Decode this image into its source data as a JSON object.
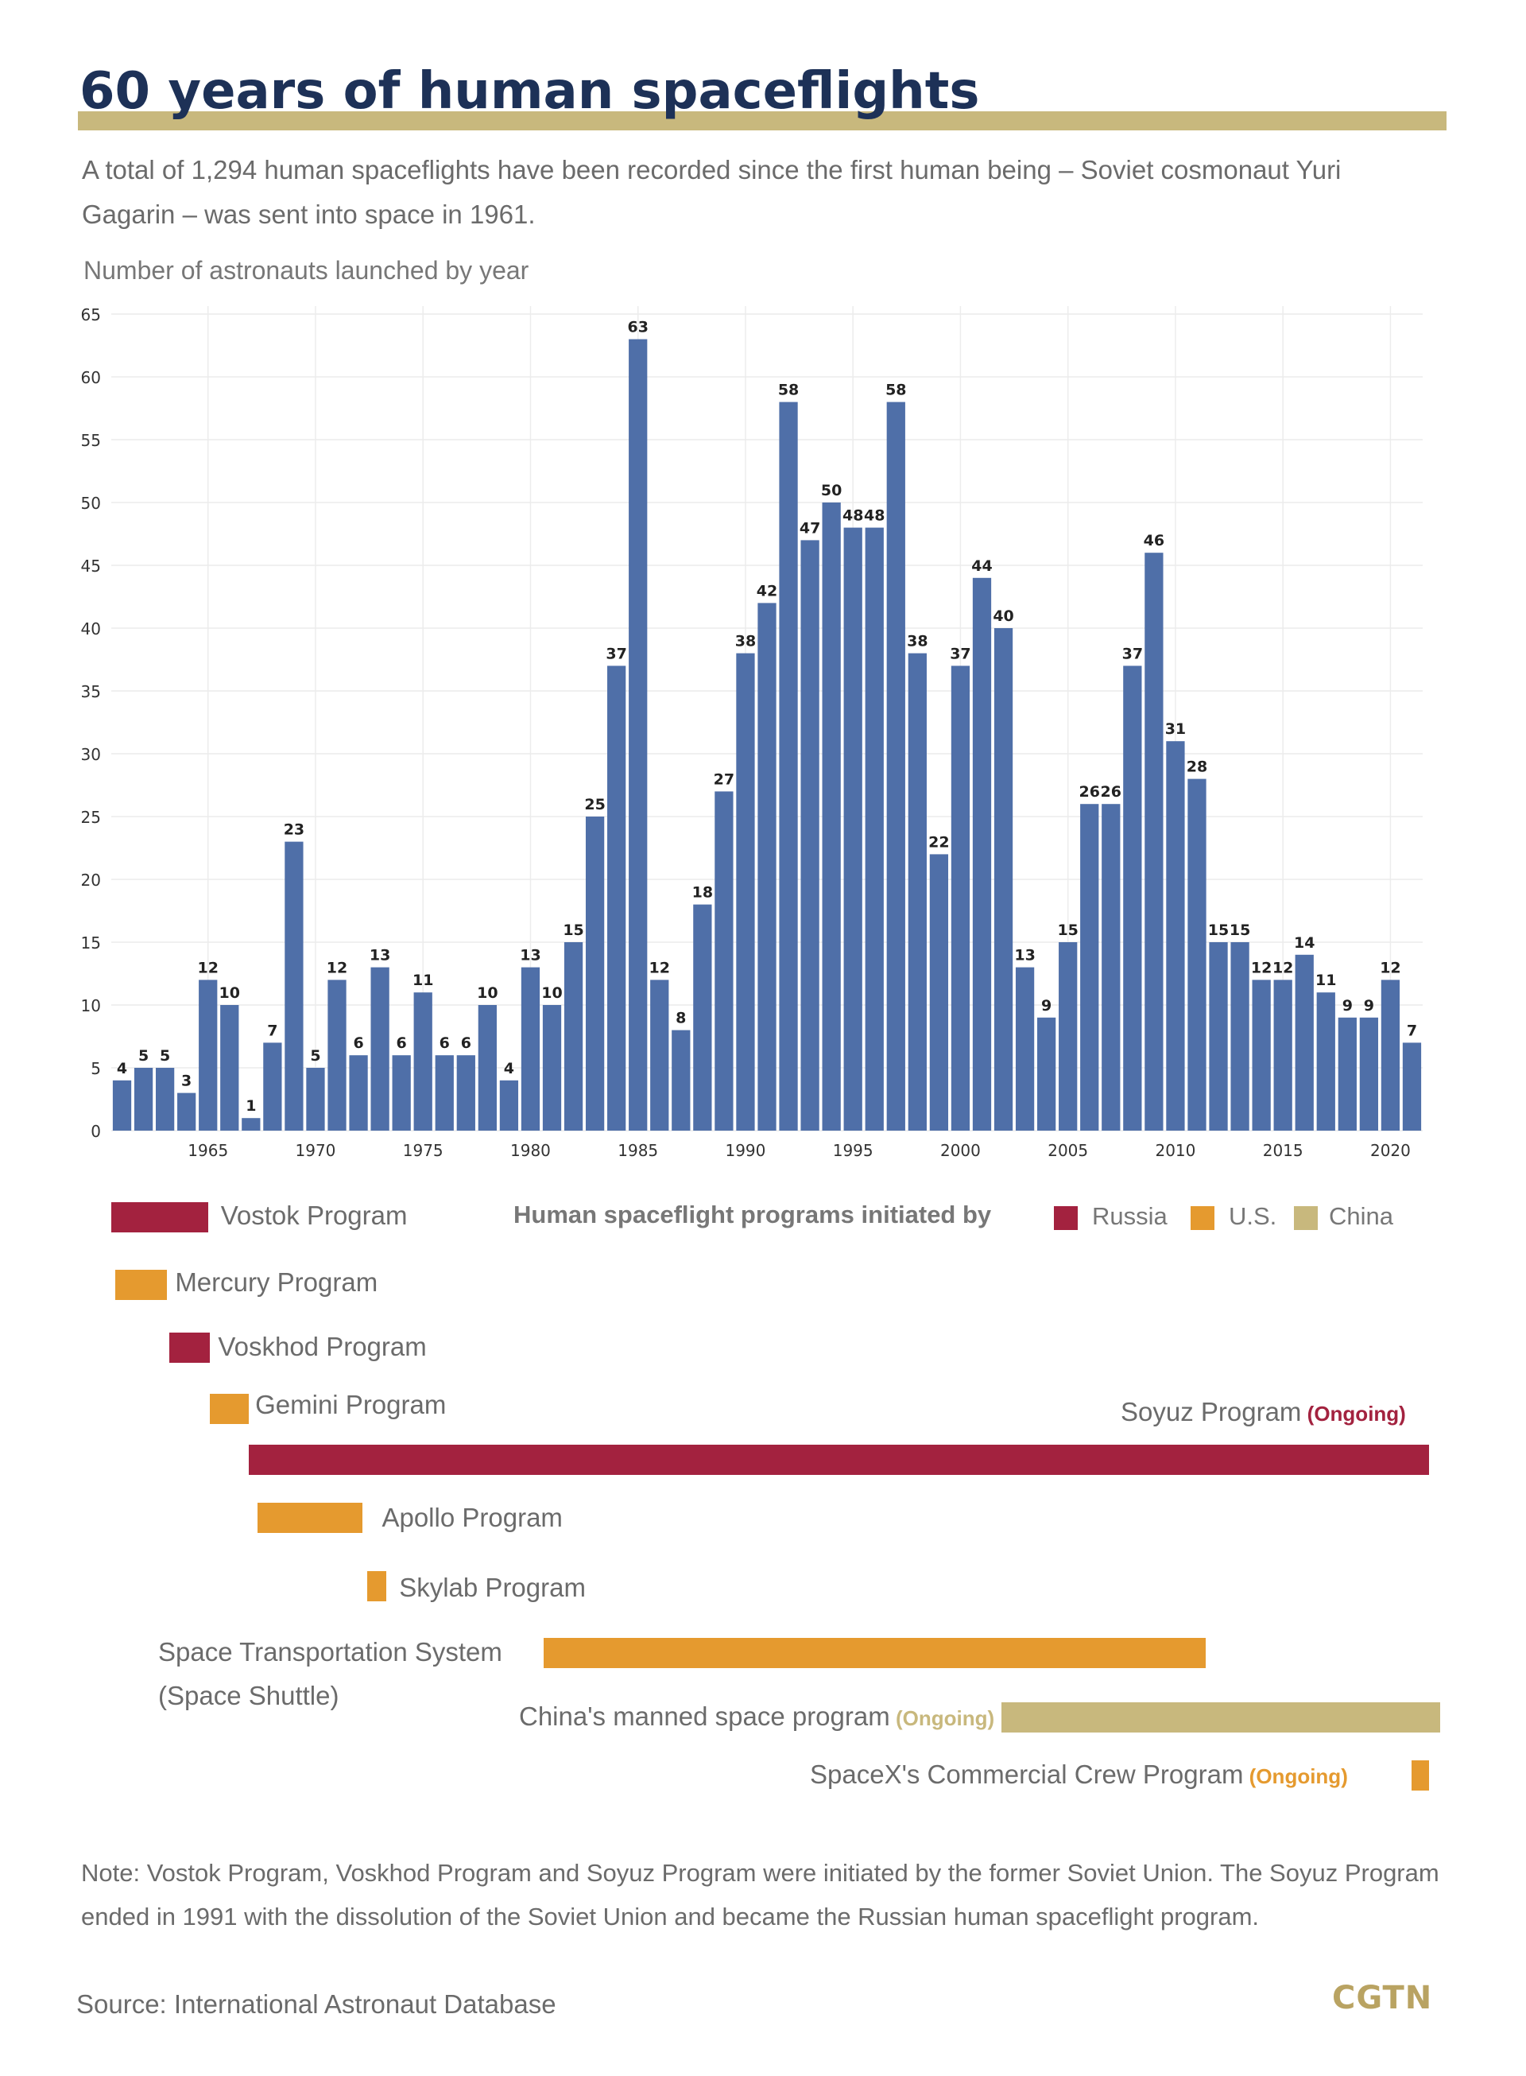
{
  "header": {
    "title": "60 years of human spaceflights",
    "subtitle": "A total of 1,294 human spaceflights have been recorded since the first human being – Soviet cosmonaut Yuri Gagarin – was sent into space in 1961.",
    "chart_label": "Number of astronauts launched by year"
  },
  "chart_data": {
    "type": "bar",
    "title": "Number of astronauts launched by year",
    "xlabel": "",
    "ylabel": "",
    "ylim": [
      0,
      65
    ],
    "yticks": [
      0,
      5,
      10,
      15,
      20,
      25,
      30,
      35,
      40,
      45,
      50,
      55,
      60,
      65
    ],
    "xticks": [
      1965,
      1970,
      1975,
      1980,
      1985,
      1990,
      1995,
      2000,
      2005,
      2010,
      2015,
      2020
    ],
    "grid": true,
    "bar_color": "#4f6fa8",
    "categories": [
      1961,
      1962,
      1963,
      1964,
      1965,
      1966,
      1967,
      1968,
      1969,
      1970,
      1971,
      1972,
      1973,
      1974,
      1975,
      1976,
      1977,
      1978,
      1979,
      1980,
      1981,
      1982,
      1983,
      1984,
      1985,
      1986,
      1987,
      1988,
      1989,
      1990,
      1991,
      1992,
      1993,
      1994,
      1995,
      1996,
      1997,
      1998,
      1999,
      2000,
      2001,
      2002,
      2003,
      2004,
      2005,
      2006,
      2007,
      2008,
      2009,
      2010,
      2011,
      2012,
      2013,
      2014,
      2015,
      2016,
      2017,
      2018,
      2019,
      2020,
      2021
    ],
    "values": [
      4,
      5,
      5,
      3,
      12,
      10,
      1,
      7,
      23,
      5,
      12,
      6,
      13,
      6,
      11,
      6,
      6,
      10,
      4,
      13,
      10,
      15,
      25,
      37,
      63,
      12,
      8,
      18,
      27,
      38,
      42,
      58,
      47,
      50,
      48,
      48,
      58,
      38,
      22,
      37,
      44,
      40,
      13,
      9,
      15,
      26,
      26,
      37,
      46,
      31,
      28,
      15,
      15,
      12,
      12,
      14,
      11,
      9,
      9,
      12,
      7
    ]
  },
  "legend": {
    "title": "Human spaceflight programs initiated by",
    "items": [
      {
        "label": "Russia",
        "color": "#a3223f"
      },
      {
        "label": "U.S.",
        "color": "#e59a2f"
      },
      {
        "label": "China",
        "color": "#c8b87d"
      }
    ]
  },
  "programs": [
    {
      "name": "Vostok Program",
      "start": 1961,
      "end": 1965.5,
      "country": "Russia",
      "ongoing": false
    },
    {
      "name": "Mercury Program",
      "start": 1961.2,
      "end": 1963.6,
      "country": "U.S.",
      "ongoing": false
    },
    {
      "name": "Voskhod Program",
      "start": 1963.7,
      "end": 1965.6,
      "country": "Russia",
      "ongoing": false
    },
    {
      "name": "Gemini Program",
      "start": 1965.6,
      "end": 1967.4,
      "country": "U.S.",
      "ongoing": false
    },
    {
      "name": "Soyuz Program",
      "start": 1967.4,
      "end": 2022.3,
      "country": "Russia",
      "ongoing": true
    },
    {
      "name": "Apollo Program",
      "start": 1967.8,
      "end": 1972.7,
      "country": "U.S.",
      "ongoing": false
    },
    {
      "name": "Skylab Program",
      "start": 1972.9,
      "end": 1973.8,
      "country": "U.S.",
      "ongoing": false
    },
    {
      "name": "Space Transportation System",
      "name_line2": "(Space Shuttle)",
      "start": 1981.1,
      "end": 2011.9,
      "country": "U.S.",
      "ongoing": false
    },
    {
      "name": "China's manned space program",
      "start": 2002.4,
      "end": 2022.8,
      "country": "China",
      "ongoing": true
    },
    {
      "name": "SpaceX's Commercial Crew Program",
      "start": 2021.5,
      "end": 2022.3,
      "country": "U.S.",
      "ongoing": true
    }
  ],
  "ongoing_label": "(Ongoing)",
  "footer": {
    "note": "Note: Vostok Program, Voskhod Program and Soyuz Program were initiated by the former Soviet Union. The Soyuz Program ended in 1991 with the dissolution of the Soviet Union and became the Russian human spaceflight program.",
    "source": "Source: International Astronaut Database",
    "logo": "CGTN"
  }
}
